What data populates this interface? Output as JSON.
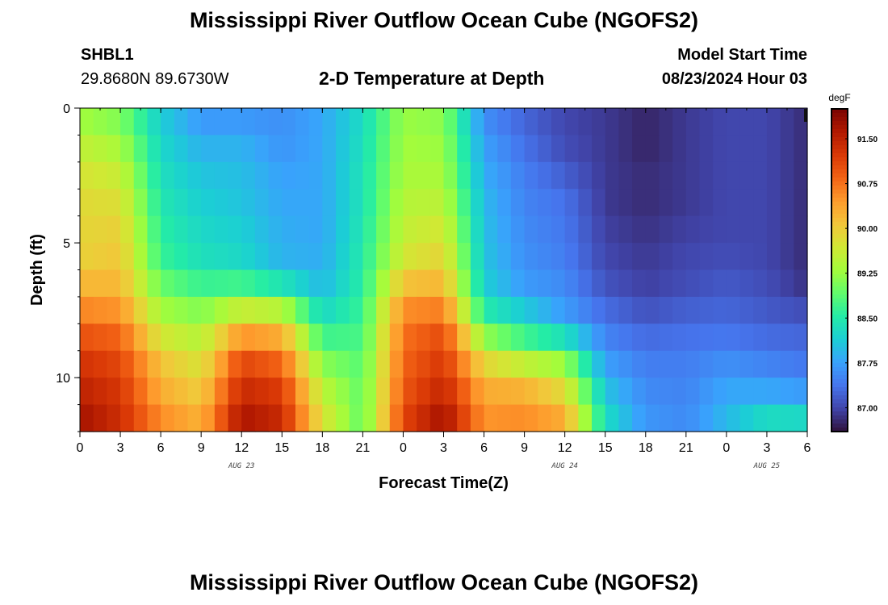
{
  "page": {
    "title": "Mississippi River Outflow Ocean Cube (NGOFS2)",
    "bottom_title": "Mississippi River Outflow Ocean Cube (NGOFS2)"
  },
  "station": {
    "id": "SHBL1",
    "coords": "29.8680N  89.6730W"
  },
  "subtitle": "2-D Temperature at Depth",
  "model": {
    "label": "Model Start Time",
    "time": "08/23/2024 Hour 03"
  },
  "chart_data": {
    "type": "heatmap",
    "title": "2-D Temperature at Depth",
    "xlabel": "Forecast Time(Z)",
    "ylabel": "Depth (ft)",
    "x_range_hours": [
      0,
      54
    ],
    "y_range_ft": [
      0,
      12
    ],
    "y_inverted": true,
    "x_ticks": [
      "0",
      "3",
      "6",
      "9",
      "12",
      "15",
      "18",
      "21",
      "0",
      "3",
      "6",
      "9",
      "12",
      "15",
      "18",
      "21",
      "0",
      "3",
      "6"
    ],
    "y_ticks": [
      "0",
      "5",
      "10"
    ],
    "date_labels": [
      {
        "label": "AUG 23",
        "hour": 12
      },
      {
        "label": "AUG 24",
        "hour": 36
      },
      {
        "label": "AUG 25",
        "hour": 51
      }
    ],
    "colorbar": {
      "unit": "degF",
      "min": 86.6,
      "max": 92.0,
      "ticks": [
        "91.50",
        "90.75",
        "90.00",
        "89.25",
        "88.50",
        "87.75",
        "87.00"
      ],
      "colors": [
        "#30123b",
        "#4145ab",
        "#4675ed",
        "#39a2fc",
        "#1bcfd4",
        "#24eca6",
        "#61fc6c",
        "#a4fc3b",
        "#d1e834",
        "#f3c63a",
        "#fe9b2d",
        "#f36315",
        "#d93806",
        "#b11901",
        "#7a0402"
      ]
    },
    "depth_levels_ft": [
      0,
      1,
      2,
      3,
      4,
      5,
      6,
      7,
      8,
      9,
      10,
      11,
      12
    ],
    "time_hours": [
      0,
      3,
      6,
      9,
      12,
      15,
      18,
      21,
      24,
      27,
      30,
      33,
      36,
      39,
      42,
      45,
      48,
      51,
      54
    ],
    "values_degF": [
      [
        89.2,
        89.0,
        88.1,
        87.6,
        87.6,
        87.6,
        87.8,
        88.3,
        89.2,
        89.1,
        87.5,
        87.2,
        87.0,
        86.9,
        86.8,
        86.9,
        87.0,
        87.0,
        86.8
      ],
      [
        89.4,
        89.2,
        88.2,
        87.8,
        87.8,
        87.6,
        87.8,
        88.3,
        89.3,
        89.2,
        87.7,
        87.3,
        87.0,
        86.9,
        86.7,
        86.9,
        87.0,
        87.0,
        86.8
      ],
      [
        89.7,
        89.5,
        88.3,
        88.0,
        88.0,
        87.7,
        87.8,
        88.4,
        89.3,
        89.3,
        87.8,
        87.4,
        87.1,
        86.9,
        86.8,
        86.9,
        87.0,
        87.0,
        86.8
      ],
      [
        89.8,
        89.7,
        88.4,
        88.1,
        88.0,
        87.8,
        87.8,
        88.4,
        89.4,
        89.4,
        87.9,
        87.5,
        87.3,
        86.9,
        86.8,
        86.9,
        87.0,
        87.0,
        86.8
      ],
      [
        89.9,
        89.9,
        88.5,
        88.2,
        88.1,
        87.8,
        87.8,
        88.4,
        89.5,
        89.6,
        88.0,
        87.5,
        87.4,
        86.9,
        86.8,
        86.9,
        87.0,
        87.0,
        86.8
      ],
      [
        89.9,
        90.0,
        88.6,
        88.3,
        88.2,
        87.9,
        87.8,
        88.5,
        89.6,
        89.8,
        88.0,
        87.6,
        87.4,
        87.0,
        86.9,
        87.0,
        87.0,
        87.0,
        86.8
      ],
      [
        90.0,
        90.1,
        88.7,
        88.4,
        88.3,
        87.9,
        87.9,
        88.5,
        89.8,
        90.0,
        88.1,
        87.6,
        87.5,
        87.0,
        86.9,
        87.0,
        87.1,
        87.0,
        86.8
      ],
      [
        90.4,
        90.3,
        89.2,
        88.9,
        89.1,
        88.9,
        88.0,
        88.6,
        90.4,
        90.4,
        88.2,
        87.8,
        87.6,
        87.2,
        87.0,
        87.1,
        87.2,
        87.1,
        86.9
      ],
      [
        90.8,
        90.7,
        89.4,
        89.3,
        90.1,
        90.0,
        88.5,
        88.7,
        90.7,
        90.9,
        88.8,
        88.4,
        87.8,
        87.4,
        87.2,
        87.3,
        87.3,
        87.2,
        87.2
      ],
      [
        91.2,
        91.0,
        90.0,
        89.6,
        90.9,
        90.6,
        88.9,
        88.8,
        90.8,
        91.2,
        89.6,
        89.0,
        88.9,
        87.6,
        87.4,
        87.4,
        87.5,
        87.4,
        87.3
      ],
      [
        91.4,
        91.2,
        90.2,
        89.9,
        91.3,
        91.1,
        89.4,
        88.9,
        90.9,
        91.3,
        90.2,
        90.1,
        89.6,
        87.9,
        87.5,
        87.5,
        87.7,
        87.6,
        87.5
      ],
      [
        91.6,
        91.3,
        90.4,
        90.1,
        91.5,
        91.3,
        89.6,
        88.9,
        91.0,
        91.6,
        90.4,
        90.4,
        90.1,
        88.2,
        87.6,
        87.5,
        87.9,
        88.0,
        87.9
      ],
      [
        91.8,
        91.4,
        90.7,
        90.4,
        91.8,
        91.5,
        89.9,
        88.9,
        91.2,
        91.8,
        90.6,
        90.7,
        90.5,
        88.4,
        87.7,
        87.6,
        88.0,
        88.6,
        88.6
      ]
    ]
  }
}
